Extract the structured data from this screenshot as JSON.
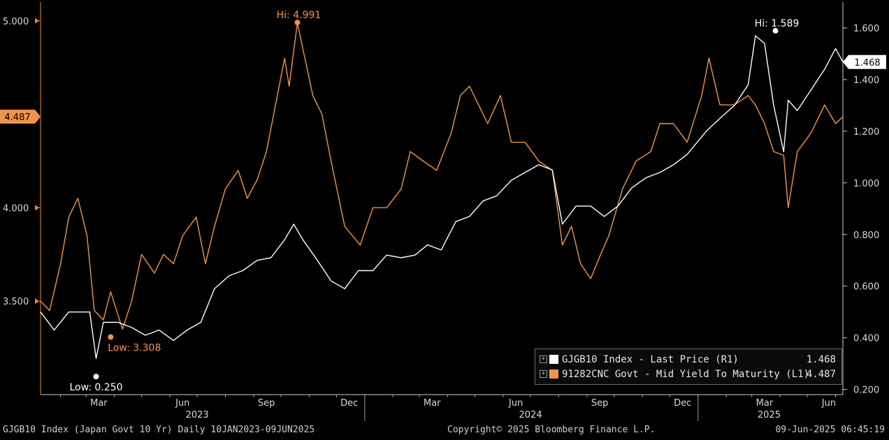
{
  "chart_data": {
    "type": "line",
    "x_range": [
      "2023-01-10",
      "2025-06-09"
    ],
    "month_ticks": [
      "Mar",
      "Jun",
      "Sep",
      "Dec",
      "Mar",
      "Jun",
      "Sep",
      "Dec",
      "Mar",
      "Jun"
    ],
    "year_labels": [
      "2023",
      "2024",
      "2025"
    ],
    "left_axis": {
      "ticks": [
        "3.500",
        "4.000",
        "5.000"
      ],
      "ylim": [
        3.0,
        5.1
      ]
    },
    "right_axis": {
      "ticks": [
        "0.200",
        "0.400",
        "0.600",
        "0.800",
        "1.000",
        "1.200",
        "1.400",
        "1.600"
      ],
      "ylim": [
        0.18,
        1.7
      ]
    },
    "series": [
      {
        "name": "GJGB10 Index - Last Price (R1)",
        "axis": "right",
        "color": "#ffffff",
        "last_value": "1.468",
        "x": [
          "2023-01-10",
          "2023-01-25",
          "2023-02-10",
          "2023-02-25",
          "2023-03-05",
          "2023-03-12",
          "2023-03-20",
          "2023-04-05",
          "2023-04-20",
          "2023-05-05",
          "2023-05-20",
          "2023-06-05",
          "2023-06-20",
          "2023-07-05",
          "2023-07-20",
          "2023-08-05",
          "2023-08-20",
          "2023-09-05",
          "2023-09-20",
          "2023-10-05",
          "2023-10-15",
          "2023-10-25",
          "2023-11-10",
          "2023-11-25",
          "2023-12-10",
          "2023-12-25",
          "2024-01-10",
          "2024-01-25",
          "2024-02-10",
          "2024-02-25",
          "2024-03-10",
          "2024-03-25",
          "2024-04-10",
          "2024-04-25",
          "2024-05-10",
          "2024-05-25",
          "2024-06-10",
          "2024-06-25",
          "2024-07-10",
          "2024-07-25",
          "2024-08-05",
          "2024-08-20",
          "2024-09-05",
          "2024-09-20",
          "2024-10-05",
          "2024-10-20",
          "2024-11-05",
          "2024-11-20",
          "2024-12-05",
          "2024-12-20",
          "2025-01-10",
          "2025-01-25",
          "2025-02-10",
          "2025-02-25",
          "2025-03-05",
          "2025-03-15",
          "2025-03-25",
          "2025-04-05",
          "2025-04-10",
          "2025-04-20",
          "2025-05-05",
          "2025-05-20",
          "2025-06-01",
          "2025-06-09"
        ],
        "values": [
          0.5,
          0.43,
          0.5,
          0.5,
          0.5,
          0.32,
          0.46,
          0.46,
          0.44,
          0.41,
          0.43,
          0.39,
          0.43,
          0.46,
          0.59,
          0.64,
          0.66,
          0.7,
          0.71,
          0.78,
          0.84,
          0.78,
          0.7,
          0.62,
          0.59,
          0.66,
          0.66,
          0.72,
          0.71,
          0.72,
          0.76,
          0.74,
          0.85,
          0.87,
          0.93,
          0.95,
          1.01,
          1.04,
          1.07,
          1.05,
          0.84,
          0.91,
          0.91,
          0.87,
          0.91,
          0.98,
          1.02,
          1.04,
          1.07,
          1.11,
          1.2,
          1.25,
          1.3,
          1.38,
          1.57,
          1.54,
          1.3,
          1.12,
          1.32,
          1.28,
          1.36,
          1.44,
          1.52,
          1.468
        ]
      },
      {
        "name": "91282CNC Govt - Mid Yield To Maturity (L1)",
        "axis": "left",
        "color": "#f0944a",
        "last_value": "4.487",
        "x": [
          "2023-01-10",
          "2023-01-20",
          "2023-02-01",
          "2023-02-10",
          "2023-02-20",
          "2023-03-02",
          "2023-03-10",
          "2023-03-20",
          "2023-03-28",
          "2023-04-10",
          "2023-04-20",
          "2023-05-01",
          "2023-05-15",
          "2023-05-25",
          "2023-06-05",
          "2023-06-15",
          "2023-06-30",
          "2023-07-10",
          "2023-07-20",
          "2023-08-01",
          "2023-08-15",
          "2023-08-25",
          "2023-09-05",
          "2023-09-15",
          "2023-09-25",
          "2023-10-05",
          "2023-10-10",
          "2023-10-19",
          "2023-10-25",
          "2023-11-05",
          "2023-11-15",
          "2023-11-25",
          "2023-12-10",
          "2023-12-27",
          "2024-01-10",
          "2024-01-25",
          "2024-02-10",
          "2024-02-20",
          "2024-03-05",
          "2024-03-20",
          "2024-04-05",
          "2024-04-15",
          "2024-04-25",
          "2024-05-05",
          "2024-05-15",
          "2024-05-29",
          "2024-06-10",
          "2024-06-25",
          "2024-07-10",
          "2024-07-25",
          "2024-08-05",
          "2024-08-15",
          "2024-08-25",
          "2024-09-05",
          "2024-09-16",
          "2024-09-25",
          "2024-10-10",
          "2024-10-25",
          "2024-11-10",
          "2024-11-20",
          "2024-12-05",
          "2024-12-20",
          "2025-01-05",
          "2025-01-13",
          "2025-01-25",
          "2025-02-10",
          "2025-02-25",
          "2025-03-05",
          "2025-03-15",
          "2025-03-25",
          "2025-04-05",
          "2025-04-10",
          "2025-04-20",
          "2025-05-05",
          "2025-05-20",
          "2025-06-01",
          "2025-06-09"
        ],
        "values": [
          3.5,
          3.45,
          3.7,
          3.95,
          4.05,
          3.85,
          3.45,
          3.4,
          3.55,
          3.35,
          3.5,
          3.75,
          3.65,
          3.75,
          3.7,
          3.85,
          3.95,
          3.7,
          3.9,
          4.1,
          4.2,
          4.05,
          4.15,
          4.3,
          4.55,
          4.8,
          4.65,
          4.99,
          4.85,
          4.6,
          4.5,
          4.25,
          3.9,
          3.8,
          4.0,
          4.0,
          4.1,
          4.3,
          4.25,
          4.2,
          4.4,
          4.6,
          4.65,
          4.55,
          4.45,
          4.6,
          4.35,
          4.35,
          4.25,
          4.2,
          3.8,
          3.9,
          3.7,
          3.62,
          3.75,
          3.85,
          4.1,
          4.25,
          4.3,
          4.45,
          4.45,
          4.35,
          4.6,
          4.8,
          4.55,
          4.55,
          4.6,
          4.55,
          4.45,
          4.3,
          4.28,
          4.0,
          4.3,
          4.4,
          4.55,
          4.45,
          4.487
        ]
      }
    ],
    "annotations": {
      "right_hi": "Hi: 1.589",
      "left_hi": "Hi: 4.991",
      "right_low": "Low: 0.250",
      "left_low": "Low: 3.308"
    },
    "last_price_labels": {
      "left": "4.487",
      "right": "1.468"
    },
    "legend_placement": "bottom-right",
    "grid": false
  },
  "footer": {
    "left": "GJGB10 Index (Japan Govt 10 Yr)  Daily 10JAN2023-09JUN2025",
    "center": "Copyright© 2025 Bloomberg Finance L.P.",
    "right": "09-Jun-2025 06:45:19"
  }
}
